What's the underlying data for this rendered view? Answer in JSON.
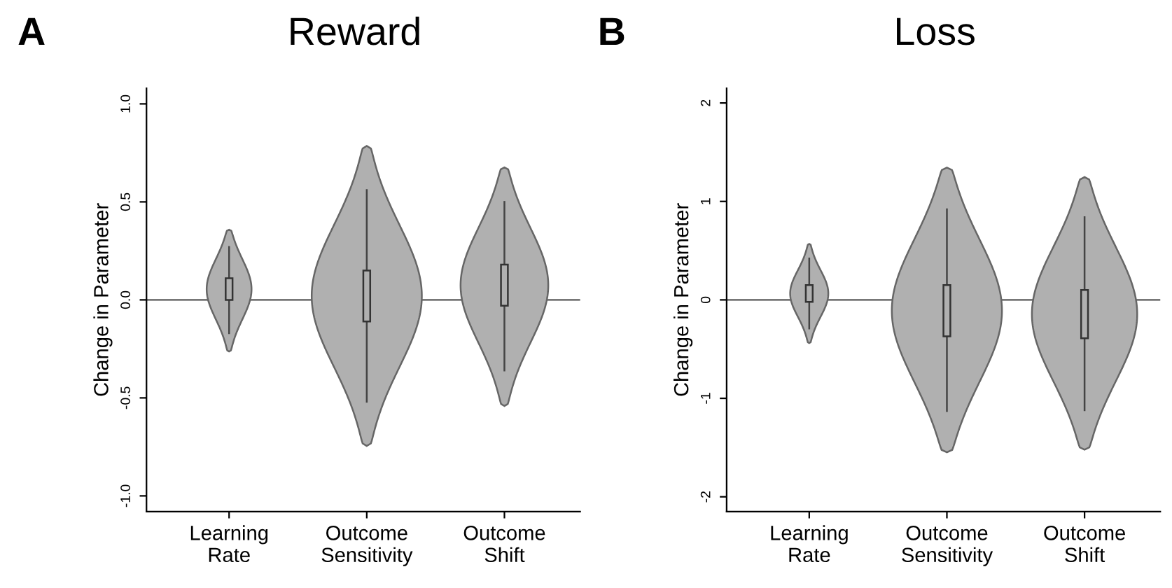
{
  "chart_data": [
    {
      "type": "box",
      "title": "Reward",
      "annotations": [
        "A"
      ],
      "ylabel": "Change in Parameter",
      "categories": [
        "Learning\nRate",
        "Outcome\nSensitivity",
        "Outcome\nShift"
      ],
      "color": "#b0b0b0",
      "boxes": [
        {
          "low": -0.17,
          "q1": 0.0,
          "q3": 0.11,
          "high": 0.27
        },
        {
          "low": -0.52,
          "q1": -0.11,
          "q3": 0.15,
          "high": 0.56
        },
        {
          "low": -0.36,
          "q1": -0.03,
          "q3": 0.18,
          "high": 0.5
        }
      ],
      "ylim": [
        -1.08,
        1.08
      ],
      "yticks": [
        {
          "value": -1,
          "label": "-1.0"
        },
        {
          "value": -0.5,
          "label": "-0.5"
        },
        {
          "value": 0,
          "label": "0.0"
        },
        {
          "value": 0.5,
          "label": "0.5"
        },
        {
          "value": 1,
          "label": "1.0"
        }
      ],
      "ref_lines": [
        {
          "axis": "y",
          "value": 0,
          "color": "#777777"
        }
      ],
      "grid": false,
      "legend": false
    },
    {
      "type": "box",
      "title": "Loss",
      "annotations": [
        "B"
      ],
      "ylabel": "Change in Parameter",
      "categories": [
        "Learning\nRate",
        "Outcome\nSensitivity",
        "Outcome\nShift"
      ],
      "color": "#b0b0b0",
      "boxes": [
        {
          "low": -0.29,
          "q1": -0.02,
          "q3": 0.15,
          "high": 0.42
        },
        {
          "low": -1.13,
          "q1": -0.37,
          "q3": 0.15,
          "high": 0.92
        },
        {
          "low": -1.12,
          "q1": -0.39,
          "q3": 0.1,
          "high": 0.84
        }
      ],
      "ylim": [
        -2.15,
        2.15
      ],
      "yticks": [
        {
          "value": -2,
          "label": "-2"
        },
        {
          "value": -1,
          "label": "-1"
        },
        {
          "value": 0,
          "label": "0"
        },
        {
          "value": 1,
          "label": "1"
        },
        {
          "value": 2,
          "label": "2"
        }
      ],
      "ref_lines": [
        {
          "axis": "y",
          "value": 0,
          "color": "#777777"
        }
      ],
      "grid": false,
      "legend": false
    }
  ]
}
